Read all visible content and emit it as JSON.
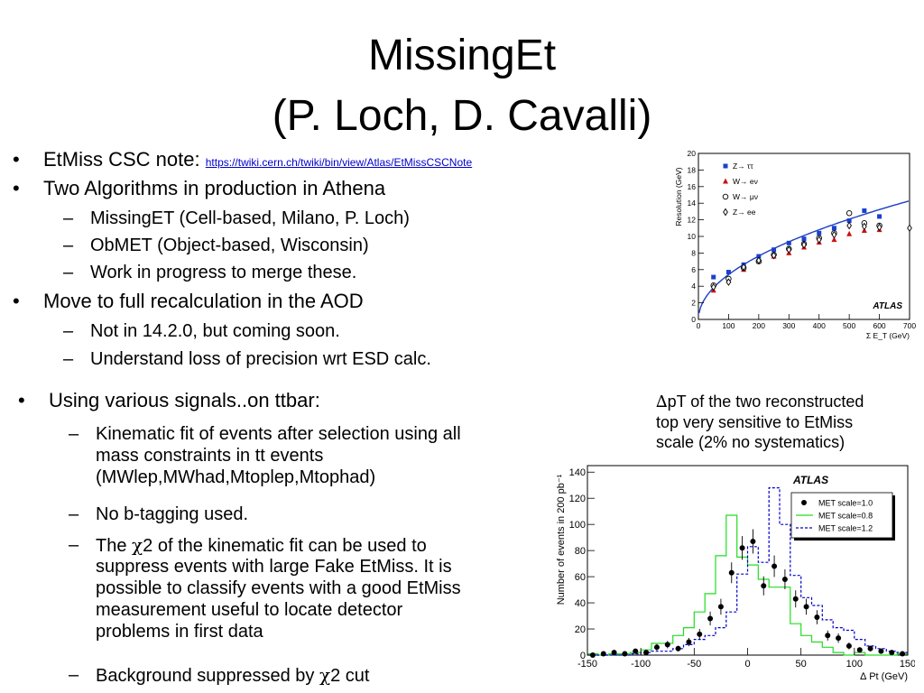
{
  "title": {
    "line1": "MissingEt",
    "line2": "(P. Loch, D. Cavalli)"
  },
  "bullets": {
    "b1_label": "EtMiss CSC note:",
    "b1_link": "https://twiki.cern.ch/twiki/bin/view/Atlas/EtMissCSCNote",
    "b2": "Two Algorithms in production in Athena",
    "b2_sub1": "MissingET (Cell-based, Milano, P. Loch)",
    "b2_sub2": "ObMET (Object-based, Wisconsin)",
    "b2_sub3": "Work in progress to merge these.",
    "b3": "Move to full recalculation in the AOD",
    "b3_sub1": "Not in 14.2.0, but coming soon.",
    "b3_sub2": "Understand loss of precision wrt ESD calc.",
    "b4": "Using various signals..on ttbar:",
    "b4_sub1_l1": "Kinematic fit of events  after selection using all",
    "b4_sub1_l2": "mass constraints in tt events",
    "b4_sub1_l3": "(MWlep,MWhad,Mtoplep,Mtophad)",
    "b4_sub2": "No b-tagging used.",
    "b4_sub3_pre": "The ",
    "b4_sub3_chi": "χ",
    "b4_sub3_l1": "2  of the kinematic fit can be used to",
    "b4_sub3_l2": "suppress events with large Fake EtMiss. It is",
    "b4_sub3_l3": "possible to classify events with a good EtMiss",
    "b4_sub3_l4": "measurement useful to locate detector",
    "b4_sub3_l5": "problems in first data",
    "b4_sub4_pre": "Background suppressed by ",
    "b4_sub4_chi": "χ",
    "b4_sub4_post": "2 cut",
    "bullet_char": "•",
    "dash_char": "–"
  },
  "note": {
    "delta": "∆",
    "l1": "pT of the two reconstructed",
    "l2": "top very sensitive to EtMiss",
    "l3": "scale (2% no systematics)"
  },
  "chart_data": [
    {
      "type": "scatter",
      "xlabel": "Σ E_T  (GeV)",
      "ylabel": "Resolution (GeV)",
      "xlim": [
        0,
        700
      ],
      "ylim": [
        0,
        20
      ],
      "xticks": [
        0,
        100,
        200,
        300,
        400,
        500,
        600,
        700
      ],
      "yticks": [
        0,
        2,
        4,
        6,
        8,
        10,
        12,
        14,
        16,
        18,
        20
      ],
      "watermark": "ATLAS",
      "fit_curve": {
        "form": "a*sqrt(x)",
        "a": 0.54,
        "color": "#1f3fbf"
      },
      "series": [
        {
          "name": "Z→ ττ",
          "marker": "filled-square",
          "color": "#1a3fd0",
          "x": [
            50,
            100,
            150,
            200,
            250,
            300,
            350,
            400,
            450,
            500,
            550,
            600
          ],
          "y": [
            5.1,
            5.7,
            6.6,
            7.6,
            8.4,
            9.2,
            9.7,
            10.4,
            11.0,
            11.9,
            13.1,
            12.4
          ]
        },
        {
          "name": "W→ eν",
          "marker": "filled-triangle",
          "color": "#cc1111",
          "x": [
            50,
            100,
            150,
            200,
            250,
            300,
            350,
            400,
            450,
            500,
            550,
            600
          ],
          "y": [
            3.5,
            4.7,
            6.0,
            7.0,
            7.6,
            8.0,
            8.7,
            9.3,
            9.6,
            10.3,
            10.7,
            10.8
          ]
        },
        {
          "name": "W→ μν",
          "marker": "open-circle",
          "color": "#000000",
          "x": [
            50,
            100,
            150,
            200,
            250,
            300,
            350,
            400,
            450,
            500,
            550,
            600
          ],
          "y": [
            4.1,
            4.9,
            6.2,
            7.0,
            7.8,
            8.5,
            9.1,
            9.8,
            10.4,
            12.8,
            11.6,
            11.3
          ]
        },
        {
          "name": "Z→ ee",
          "marker": "open-diamond",
          "color": "#000000",
          "x": [
            50,
            100,
            150,
            200,
            250,
            300,
            350,
            400,
            450,
            500,
            550,
            600,
            700
          ],
          "y": [
            3.9,
            4.5,
            6.3,
            7.1,
            7.7,
            8.4,
            9.0,
            9.6,
            10.2,
            11.3,
            11.2,
            11.1,
            11.0
          ]
        }
      ]
    },
    {
      "type": "line",
      "xlabel": "∆ Pt (GeV)",
      "ylabel": "Number of events in 200 pb⁻¹",
      "xlim": [
        -150,
        150
      ],
      "ylim": [
        0,
        145
      ],
      "xticks": [
        -150,
        -100,
        -50,
        0,
        50,
        100,
        150
      ],
      "yticks": [
        0,
        20,
        40,
        60,
        80,
        100,
        120,
        140
      ],
      "watermark": "ATLAS",
      "legend_position": "top-right",
      "bin_edges": [
        -150,
        -140,
        -130,
        -120,
        -110,
        -100,
        -90,
        -80,
        -70,
        -60,
        -50,
        -40,
        -30,
        -20,
        -10,
        0,
        10,
        20,
        30,
        40,
        50,
        60,
        70,
        80,
        90,
        100,
        110,
        120,
        130,
        140,
        150
      ],
      "series": [
        {
          "name": "MET scale=1.0",
          "style": "points-errorbars",
          "color": "#000000",
          "x": [
            -145,
            -135,
            -125,
            -115,
            -105,
            -95,
            -85,
            -75,
            -65,
            -55,
            -45,
            -35,
            -25,
            -15,
            -5,
            5,
            15,
            25,
            35,
            45,
            55,
            65,
            75,
            85,
            95,
            105,
            115,
            125,
            135,
            145
          ],
          "y": [
            0,
            1,
            2,
            1,
            3,
            2,
            6,
            8,
            5,
            10,
            16,
            28,
            37,
            63,
            82,
            87,
            53,
            68,
            58,
            43,
            37,
            29,
            15,
            13,
            7,
            4,
            5,
            3,
            2,
            1
          ]
        },
        {
          "name": "MET scale=0.8",
          "style": "step",
          "color": "#22dd22",
          "y": [
            1,
            0,
            1,
            1,
            2,
            4,
            9,
            9,
            15,
            21,
            33,
            47,
            76,
            107,
            75,
            69,
            58,
            52,
            52,
            24,
            15,
            10,
            6,
            2,
            0,
            2,
            0,
            0,
            0,
            1
          ]
        },
        {
          "name": "MET scale=1.2",
          "style": "step-dashed",
          "color": "#0000cc",
          "y": [
            0,
            0,
            0,
            0,
            1,
            2,
            3,
            3,
            5,
            8,
            12,
            15,
            21,
            33,
            62,
            83,
            71,
            128,
            100,
            61,
            44,
            38,
            27,
            21,
            19,
            12,
            7,
            5,
            3,
            2
          ]
        }
      ]
    }
  ]
}
